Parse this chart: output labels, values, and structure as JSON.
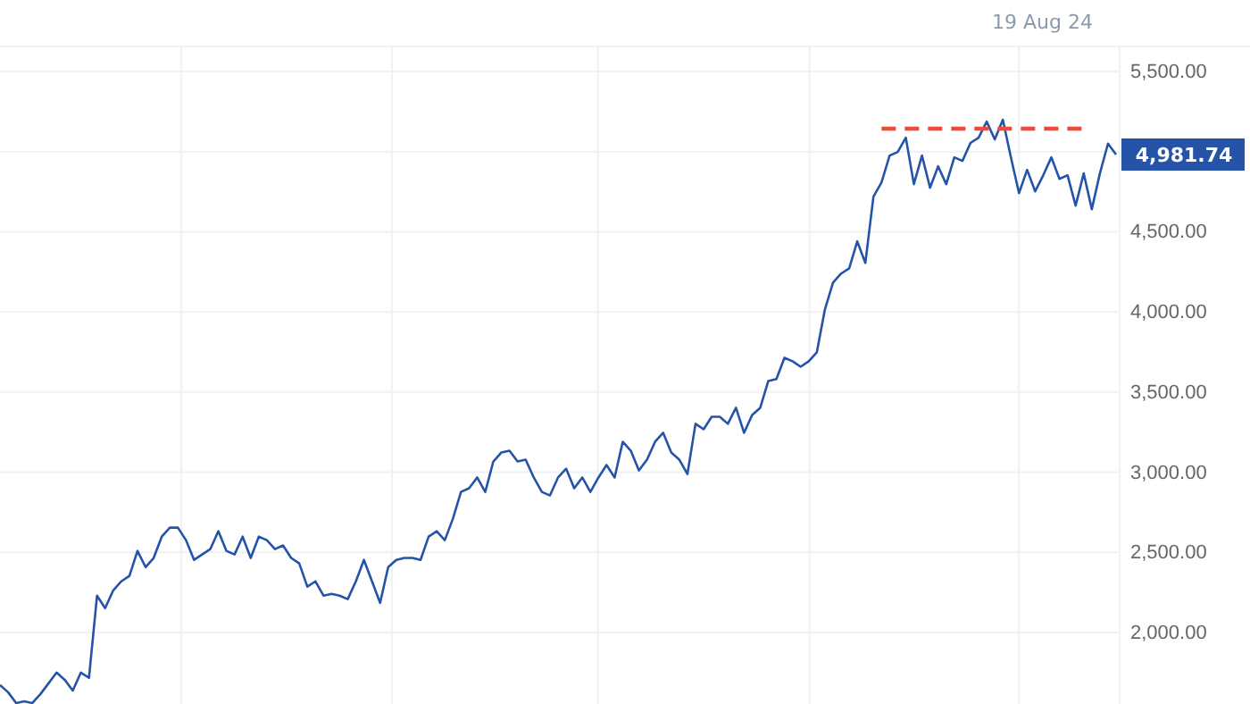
{
  "chart_data": {
    "type": "line",
    "categories": [
      null,
      null,
      null,
      null,
      null,
      null,
      null,
      null,
      null,
      null,
      null,
      null,
      null,
      null,
      null,
      null,
      null,
      null,
      null,
      null,
      null,
      null,
      null,
      null,
      null,
      null,
      null,
      null,
      null,
      null,
      null,
      null,
      null,
      null,
      null,
      null,
      null,
      null,
      null,
      null,
      null,
      null,
      null,
      null,
      null,
      null,
      null,
      null,
      null,
      null,
      null,
      null,
      null,
      null,
      null,
      null,
      null,
      null,
      null,
      null,
      null,
      null,
      null,
      null,
      null,
      null,
      null,
      null,
      null,
      null,
      null,
      null,
      null,
      null,
      null,
      null,
      null,
      null,
      null,
      null,
      null,
      null,
      null,
      null,
      null,
      null,
      null,
      null,
      null,
      null,
      null,
      null,
      null,
      null,
      null,
      null,
      null,
      null,
      null,
      null,
      null,
      null,
      null,
      null,
      null,
      null,
      null,
      null,
      null,
      null,
      null,
      null,
      null,
      null,
      null,
      null,
      null,
      null,
      null,
      null,
      null,
      null,
      null,
      null,
      null,
      null,
      null,
      null,
      null,
      null,
      null,
      null,
      null,
      null,
      null,
      null,
      null,
      null,
      null
    ],
    "series": [
      {
        "color": "#2553a8",
        "values": [
          1672,
          1627,
          1560,
          1571,
          1560,
          1616,
          1683,
          1750,
          1705,
          1638,
          1750,
          1717,
          2230,
          2152,
          2263,
          2319,
          2353,
          2509,
          2408,
          2465,
          2598,
          2654,
          2654,
          2576,
          2453,
          2487,
          2520,
          2632,
          2509,
          2487,
          2598,
          2465,
          2598,
          2576,
          2520,
          2543,
          2465,
          2431,
          2286,
          2319,
          2230,
          2241,
          2230,
          2208,
          2319,
          2453,
          2319,
          2185,
          2408,
          2453,
          2465,
          2465,
          2453,
          2598,
          2632,
          2576,
          2710,
          2877,
          2900,
          2967,
          2877,
          3067,
          3123,
          3134,
          3067,
          3078,
          2967,
          2877,
          2855,
          2967,
          3022,
          2900,
          2967,
          2877,
          2967,
          3045,
          2967,
          3190,
          3134,
          3011,
          3078,
          3190,
          3246,
          3123,
          3078,
          2989,
          3302,
          3268,
          3346,
          3346,
          3302,
          3402,
          3246,
          3357,
          3402,
          3569,
          3581,
          3714,
          3692,
          3658,
          3692,
          3748,
          4016,
          4183,
          4239,
          4272,
          4440,
          4306,
          4719,
          4808,
          4975,
          4998,
          5087,
          4797,
          4975,
          4775,
          4908,
          4797,
          4964,
          4942,
          5054,
          5087,
          5187,
          5076,
          5199,
          4964,
          4741,
          4886,
          4752,
          4853,
          4964,
          4830,
          4853,
          4663,
          4864,
          4641,
          4864,
          5050,
          4981.74
        ],
        "value_labels": [
          null,
          null,
          null,
          null,
          null,
          null,
          null,
          null,
          null,
          null,
          null,
          null,
          null,
          null,
          null,
          null,
          null,
          null,
          null,
          null,
          null,
          null,
          null,
          null,
          null,
          null,
          null,
          null,
          null,
          null,
          null,
          null,
          null,
          null,
          null,
          null,
          null,
          null,
          null,
          null,
          null,
          null,
          null,
          null,
          null,
          null,
          null,
          null,
          null,
          null,
          null,
          null,
          null,
          null,
          null,
          null,
          null,
          null,
          null,
          null,
          null,
          null,
          null,
          null,
          null,
          null,
          null,
          null,
          null,
          null,
          null,
          null,
          null,
          null,
          null,
          null,
          null,
          null,
          null,
          null,
          null,
          null,
          null,
          null,
          null,
          null,
          null,
          null,
          null,
          null,
          null,
          null,
          null,
          null,
          null,
          null,
          null,
          null,
          null,
          null,
          null,
          null,
          null,
          null,
          null,
          null,
          null,
          null,
          null,
          null,
          null,
          null,
          null,
          null,
          null,
          null,
          null,
          null,
          null,
          null,
          null,
          null,
          null,
          null,
          null,
          null,
          null,
          null,
          null,
          null,
          null,
          null,
          null,
          null,
          null,
          null,
          null,
          null,
          "4,981.74"
        ]
      },
      {
        "color": "#f04a3a",
        "line_style": "dashed",
        "values": [
          null,
          null,
          null,
          null,
          null,
          null,
          null,
          null,
          null,
          null,
          null,
          null,
          null,
          null,
          null,
          null,
          null,
          null,
          null,
          null,
          null,
          null,
          null,
          null,
          null,
          null,
          null,
          null,
          null,
          null,
          null,
          null,
          null,
          null,
          null,
          null,
          null,
          null,
          null,
          null,
          null,
          null,
          null,
          null,
          null,
          null,
          null,
          null,
          null,
          null,
          null,
          null,
          null,
          null,
          null,
          null,
          null,
          null,
          null,
          null,
          null,
          null,
          null,
          null,
          null,
          null,
          null,
          null,
          null,
          null,
          null,
          null,
          null,
          null,
          null,
          null,
          null,
          null,
          null,
          null,
          null,
          null,
          null,
          null,
          null,
          null,
          null,
          null,
          null,
          null,
          null,
          null,
          null,
          null,
          null,
          null,
          null,
          null,
          null,
          null,
          null,
          null,
          null,
          null,
          null,
          null,
          null,
          null,
          null,
          5143,
          5143,
          5143,
          5143,
          5143,
          5143,
          5143,
          5143,
          5143,
          5143,
          5143,
          5143,
          5143,
          5143,
          5143,
          5143,
          5143,
          5143,
          5143,
          5143,
          5143,
          5143,
          5143,
          5143,
          5143,
          5143,
          null,
          null,
          null,
          null
        ]
      }
    ],
    "ylim": [
      1554,
      5656
    ],
    "yticks": [
      {
        "value": 2000,
        "label": "2,000.00"
      },
      {
        "value": 2500,
        "label": "2,500.00"
      },
      {
        "value": 3000,
        "label": "3,000.00"
      },
      {
        "value": 3500,
        "label": "3,500.00"
      },
      {
        "value": 4000,
        "label": "4,000.00"
      },
      {
        "value": 4500,
        "label": "4,500.00"
      },
      {
        "value": 5000,
        "label": null
      },
      {
        "value": 5500,
        "label": "5,500.00"
      }
    ],
    "grid": true,
    "tick_labels": "y",
    "marker": "none",
    "line_style": "solid",
    "annotations": [
      "19 Aug 24"
    ]
  }
}
